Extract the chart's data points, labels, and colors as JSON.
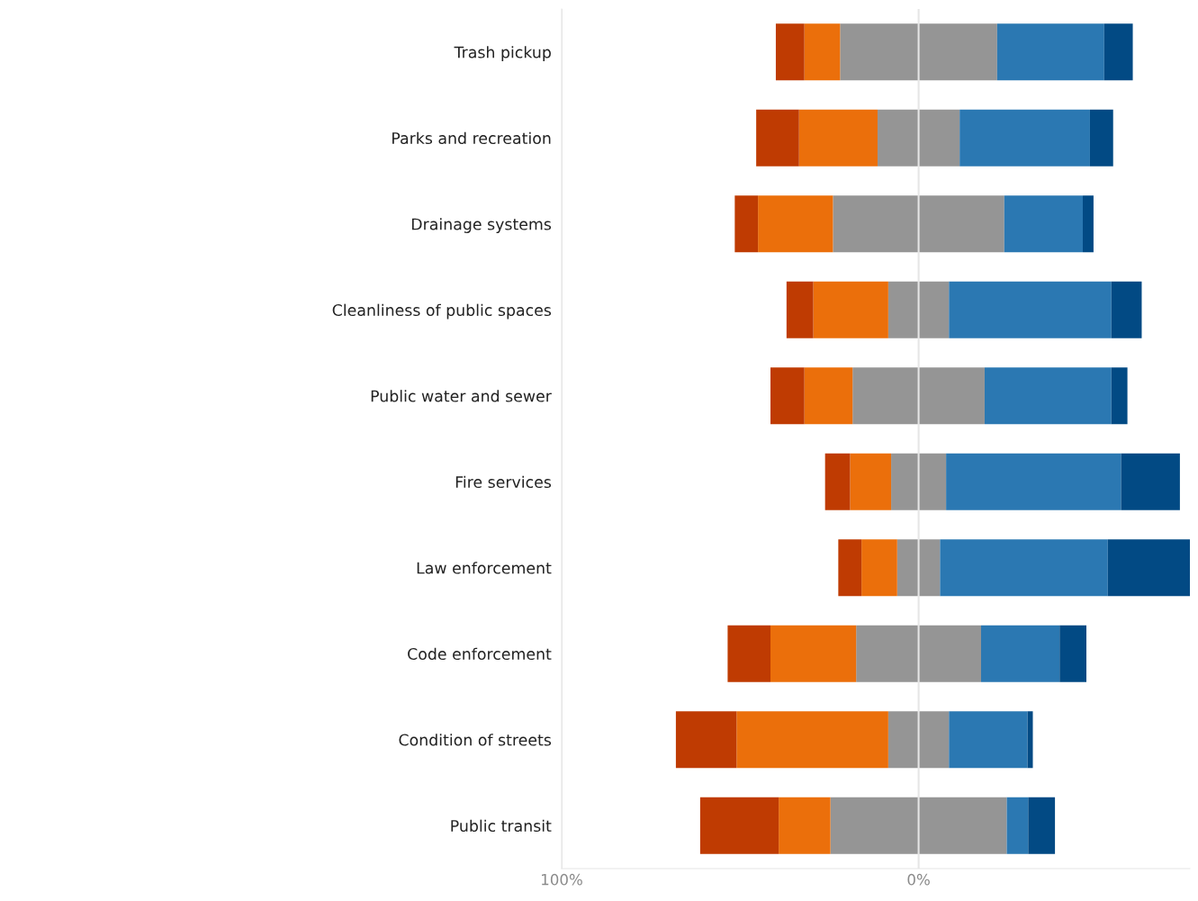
{
  "chart_data": {
    "type": "bar",
    "orientation": "horizontal",
    "stacked": true,
    "categories": [
      "Trash pickup",
      "Parks and recreation",
      "Drainage systems",
      "Cleanliness of public spaces",
      "Public water and sewer",
      "Fire services",
      "Law enforcement",
      "Code enforcement",
      "Condition of streets",
      "Public transit"
    ],
    "series": [
      {
        "color": "#959595",
        "values": [
          -22,
          -11.5,
          -24,
          -8.5,
          -18.5,
          -7.7,
          -6,
          -17.5,
          -8.5,
          -24.7
        ]
      },
      {
        "color": "#eb6f0b",
        "values": [
          -10,
          -22,
          -21,
          -21,
          -13.5,
          -11.5,
          -10,
          -24,
          -42.5,
          -14.5
        ]
      },
      {
        "color": "#bf3b02",
        "values": [
          -8,
          -12,
          -6.5,
          -7.5,
          -9.5,
          -7,
          -6.5,
          -12,
          -17,
          -22
        ]
      },
      {
        "color": "#959595",
        "values": [
          22,
          11.5,
          24,
          8.5,
          18.5,
          7.7,
          6,
          17.5,
          8.5,
          24.7
        ]
      },
      {
        "color": "#2b78b2",
        "values": [
          30,
          36.5,
          22,
          45.5,
          35.5,
          49,
          47,
          22,
          22,
          6
        ]
      },
      {
        "color": "#024a84",
        "values": [
          8,
          6.5,
          3,
          8.5,
          4.5,
          16.5,
          23.5,
          7.5,
          1.5,
          7.5
        ]
      }
    ],
    "xlim": [
      -100,
      76
    ],
    "xticks": [
      {
        "value": -100,
        "label": "100%"
      },
      {
        "value": 0,
        "label": "0%"
      }
    ],
    "grid": "x"
  }
}
